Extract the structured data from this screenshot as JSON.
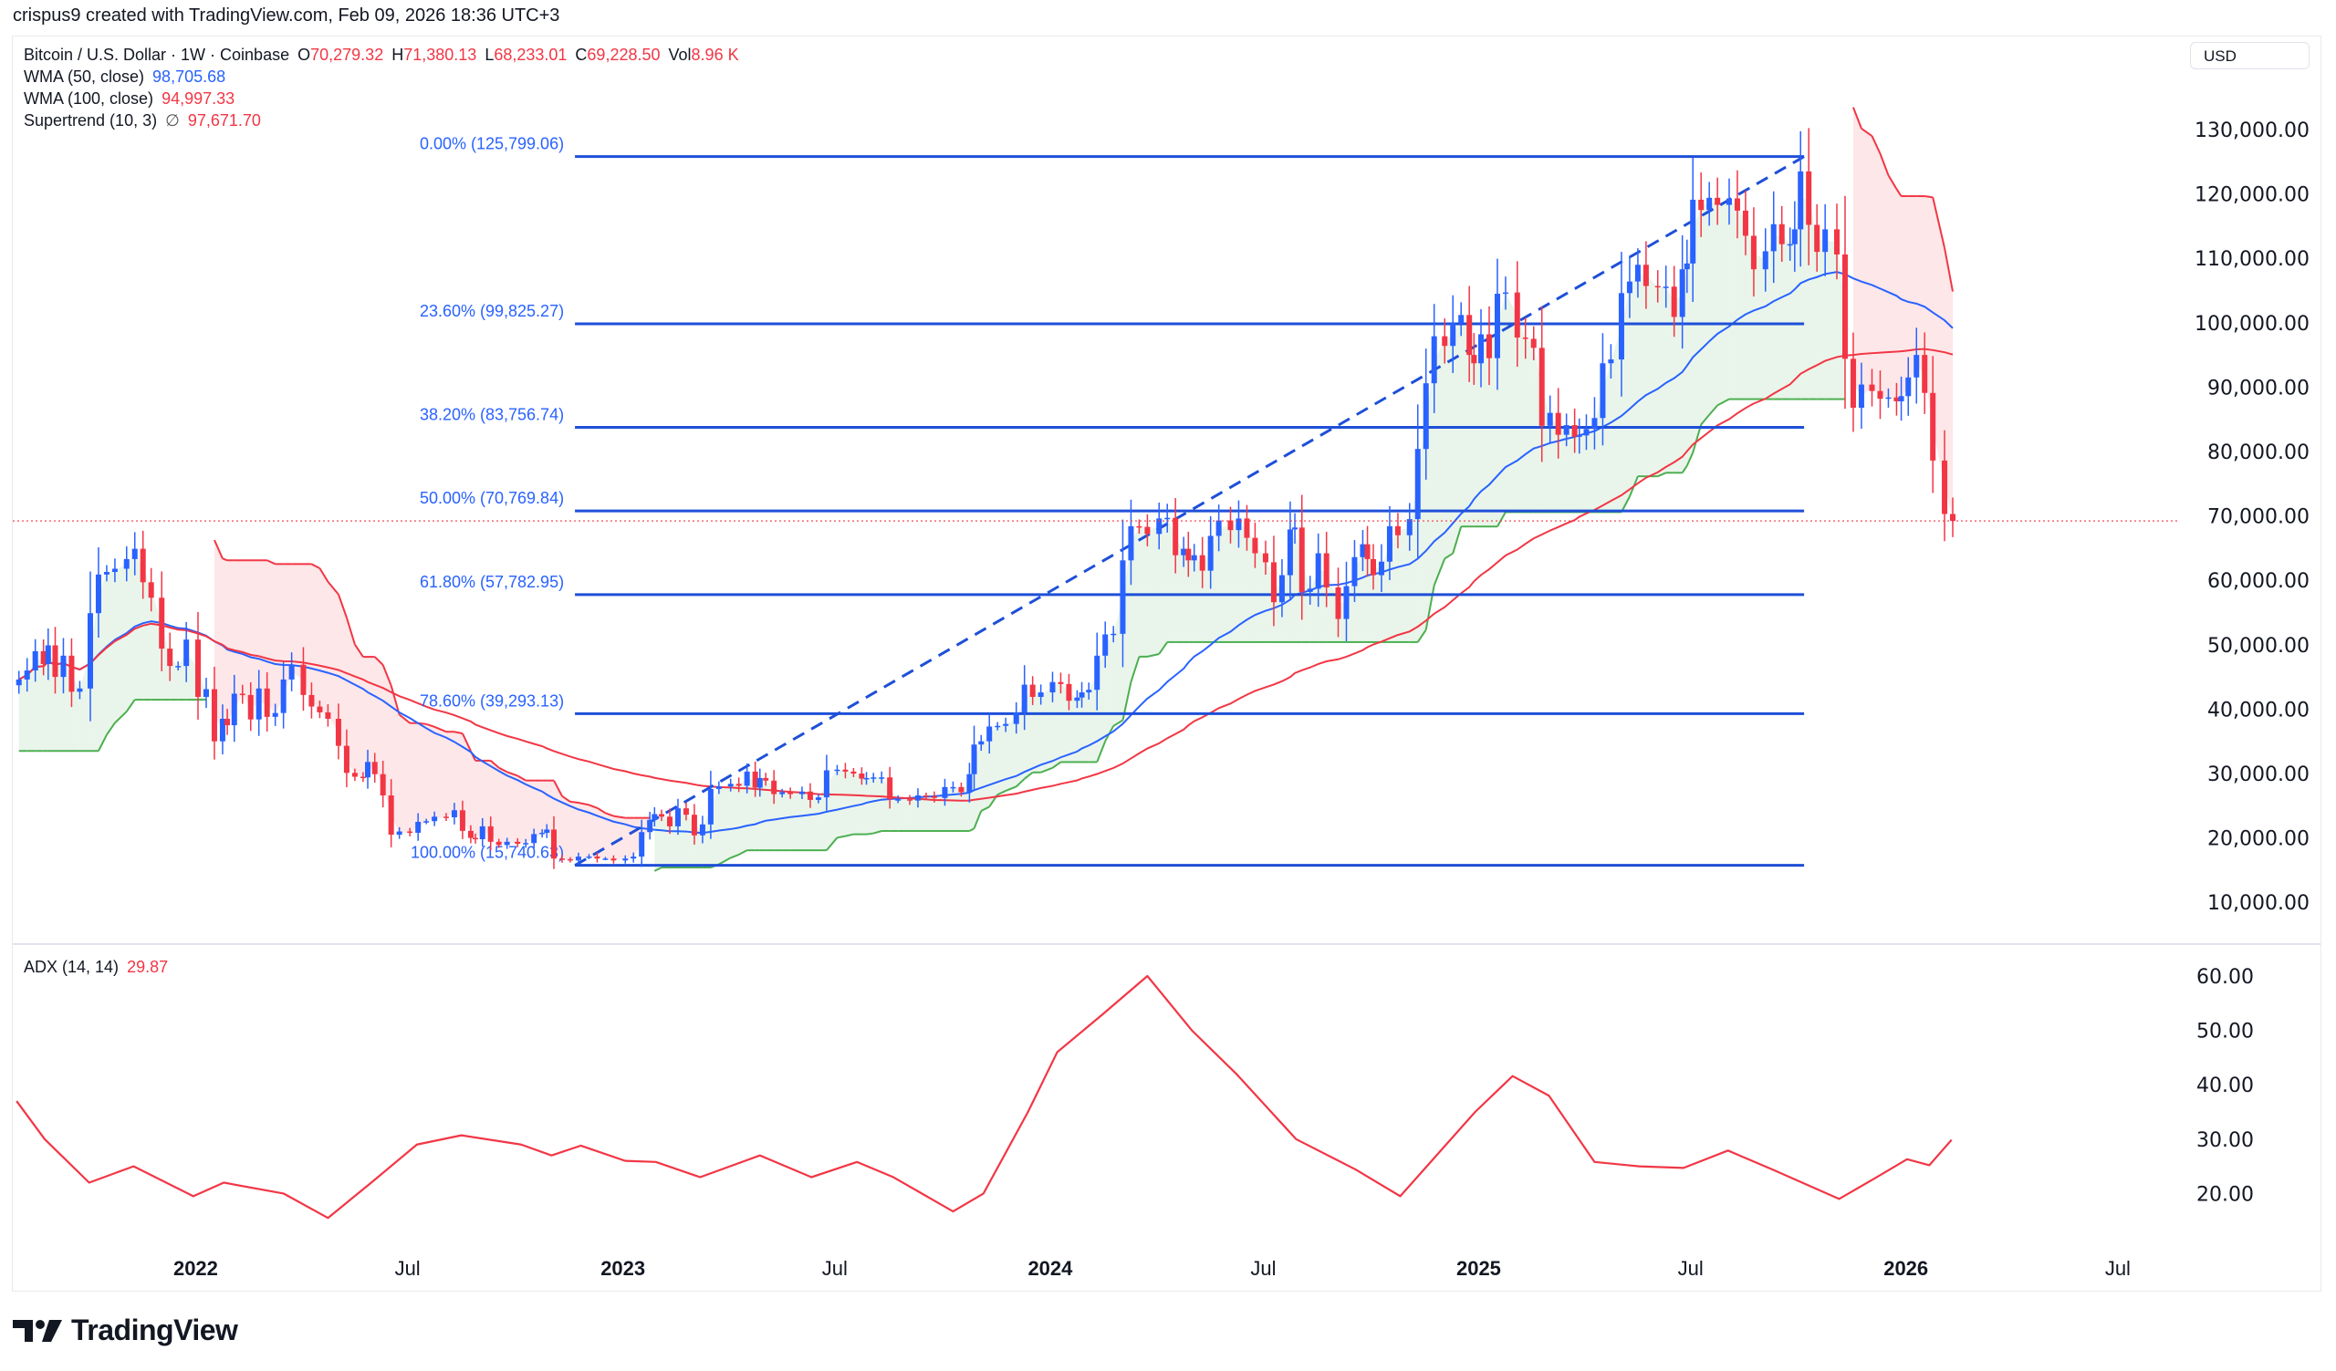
{
  "credit": "crispus9 created with TradingView.com, Feb 09, 2026 18:36 UTC+3",
  "symbol": {
    "name": "Bitcoin / U.S. Dollar · 1W · Coinbase",
    "o_label": "O",
    "o": "70,279.32",
    "h_label": "H",
    "h": "71,380.13",
    "l_label": "L",
    "l": "68,233.01",
    "c_label": "C",
    "c": "69,228.50",
    "vol_label": "Vol",
    "vol": "8.96 K"
  },
  "indicators": {
    "wma50": {
      "label": "WMA (50, close)",
      "value": "98,705.68",
      "color": "#2962ff"
    },
    "wma100": {
      "label": "WMA (100, close)",
      "value": "94,997.33",
      "color": "#f23645"
    },
    "supertrend": {
      "label": "Supertrend (10, 3)",
      "icon": "∅",
      "value": "97,671.70",
      "up_color": "#4caf50",
      "down_color": "#f23645"
    },
    "adx": {
      "label": "ADX (14, 14)",
      "value": "29.87",
      "color": "#f23645"
    }
  },
  "currency": "USD",
  "logo": {
    "text": "TradingView"
  },
  "colors": {
    "up": "#2962ff",
    "down": "#f23645",
    "fib": "#1e4fd8",
    "grid_border": "#e0e3eb"
  },
  "chart_data": [
    {
      "type": "candlestick",
      "timeframe": "1W",
      "ylim": [
        10000,
        130000
      ],
      "yticks": [
        "130,000.00",
        "120,000.00",
        "110,000.00",
        "100,000.00",
        "90,000.00",
        "80,000.00",
        "70,000.00",
        "60,000.00",
        "50,000.00",
        "40,000.00",
        "30,000.00",
        "20,000.00",
        "10,000.00"
      ],
      "ytick_values": [
        130000,
        120000,
        110000,
        100000,
        90000,
        80000,
        70000,
        60000,
        50000,
        40000,
        30000,
        20000,
        10000
      ],
      "xticks": [
        {
          "date": "2022-01-01",
          "label": "2022",
          "bold": true
        },
        {
          "date": "2022-07-01",
          "label": "Jul",
          "bold": false
        },
        {
          "date": "2023-01-01",
          "label": "2023",
          "bold": true
        },
        {
          "date": "2023-07-01",
          "label": "Jul",
          "bold": false
        },
        {
          "date": "2024-01-01",
          "label": "2024",
          "bold": true
        },
        {
          "date": "2024-07-01",
          "label": "Jul",
          "bold": false
        },
        {
          "date": "2025-01-01",
          "label": "2025",
          "bold": true
        },
        {
          "date": "2025-07-01",
          "label": "Jul",
          "bold": false
        },
        {
          "date": "2026-01-01",
          "label": "2026",
          "bold": true
        },
        {
          "date": "2026-07-01",
          "label": "Jul",
          "bold": false
        }
      ],
      "last_price": 69228.5,
      "weekly_close_by_month": {
        "2021-08": [
          44600,
          46000,
          49000,
          47000,
          49900
        ],
        "2021-09": [
          45000,
          48300,
          42700,
          43200
        ],
        "2021-10": [
          54900,
          60900,
          61300,
          61800
        ],
        "2021-11": [
          63300,
          64900,
          59700,
          57300
        ],
        "2021-12": [
          49400,
          46700,
          46700,
          50800
        ],
        "2022-01": [
          41900,
          43100,
          35000,
          38500,
          37500
        ],
        "2022-02": [
          42400,
          42200,
          38400,
          43200
        ],
        "2022-03": [
          38800,
          39400,
          44600,
          46900
        ],
        "2022-04": [
          42200,
          40400,
          39500,
          38500
        ],
        "2022-05": [
          34300,
          30100,
          29500,
          29400,
          31800
        ],
        "2022-06": [
          29900,
          26600,
          20500,
          21000
        ],
        "2022-07": [
          20800,
          22500,
          22600,
          23300
        ],
        "2022-08": [
          23200,
          24300,
          21100,
          20000,
          19800
        ],
        "2022-09": [
          21800,
          19400,
          18900,
          19400
        ],
        "2022-10": [
          19100,
          19200,
          20600,
          20800,
          21300
        ],
        "2022-11": [
          16800,
          16700,
          16500,
          17100
        ],
        "2022-12": [
          17100,
          16800,
          16800,
          16500
        ],
        "2023-01": [
          16800,
          17100,
          20900,
          22800,
          23700
        ],
        "2023-02": [
          23300,
          21800,
          24600,
          23600
        ],
        "2023-03": [
          20400,
          22100,
          27600,
          28000
        ],
        "2023-04": [
          28400,
          28100,
          30300,
          27800,
          29300
        ],
        "2023-05": [
          28900,
          26800,
          27100,
          26800
        ],
        "2023-06": [
          27200,
          25900,
          26300,
          30500
        ],
        "2023-07": [
          30600,
          30300,
          30000,
          29200,
          29300
        ],
        "2023-08": [
          29400,
          29400,
          26000,
          26000
        ],
        "2023-09": [
          25800,
          26600,
          26500,
          26200
        ],
        "2023-10": [
          27900,
          27900,
          27100,
          29900,
          34500
        ],
        "2023-11": [
          35000,
          37300,
          37400,
          37700
        ],
        "2023-12": [
          39500,
          43800,
          41900,
          42600
        ],
        "2024-01": [
          44200,
          43900,
          41300,
          41800,
          42600
        ],
        "2024-02": [
          43000,
          48300,
          51600,
          51700
        ],
        "2024-03": [
          63100,
          68400,
          68300,
          67200
        ],
        "2024-04": [
          69600,
          69700,
          63900,
          64900,
          63100
        ],
        "2024-05": [
          63900,
          61500,
          66900,
          69300
        ],
        "2024-06": [
          67800,
          69600,
          66600,
          64200
        ],
        "2024-07": [
          62800,
          56600,
          60800,
          67900,
          68200
        ],
        "2024-08": [
          58200,
          58700,
          64200,
          58900
        ],
        "2024-09": [
          54000,
          59100,
          63600,
          65600,
          63300
        ],
        "2024-10": [
          60800,
          62900,
          68400,
          67000
        ],
        "2024-11": [
          69500,
          80400,
          90600,
          97900
        ],
        "2024-12": [
          96400,
          99900,
          101200,
          95000,
          93700
        ],
        "2025-01": [
          98200,
          94500,
          104500,
          104700
        ],
        "2025-02": [
          97700,
          97500,
          96100,
          84000
        ],
        "2025-03": [
          86000,
          82600,
          84100,
          82300,
          82500
        ],
        "2025-04": [
          83500,
          85200,
          93700,
          94300
        ],
        "2025-05": [
          104600,
          106400,
          109000,
          105700
        ],
        "2025-06": [
          105600,
          105600,
          100900,
          108300,
          109200
        ],
        "2025-07": [
          119100,
          117500,
          119400,
          118300
        ],
        "2025-08": [
          119300,
          117400,
          113500,
          108300
        ],
        "2025-09": [
          111100,
          115300,
          112200,
          112200,
          114500
        ],
        "2025-10": [
          123500,
          115200,
          111000,
          114500
        ],
        "2025-11": [
          110600,
          94400,
          86800,
          90400
        ],
        "2025-12": [
          89400,
          88200,
          88400,
          87800,
          88600
        ],
        "2026-01": [
          91500,
          95000,
          89100,
          78600
        ],
        "2026-02": [
          70300,
          69228.5
        ]
      },
      "fibonacci": [
        {
          "label": "0.00% (125,799.06)",
          "price": 125799.06
        },
        {
          "label": "23.60% (99,825.27)",
          "price": 99825.27
        },
        {
          "label": "38.20% (83,756.74)",
          "price": 83756.74
        },
        {
          "label": "50.00% (70,769.84)",
          "price": 70769.84
        },
        {
          "label": "61.80% (57,782.95)",
          "price": 57782.95
        },
        {
          "label": "78.60% (39,293.13)",
          "price": 39293.13
        },
        {
          "label": "100.00% (15,740.63)",
          "price": 15740.63
        }
      ],
      "fibonacci_range": {
        "start_date": "2022-11-21",
        "end_date": "2025-10-06",
        "low": 15740.63,
        "high": 125799.06
      }
    },
    {
      "type": "line",
      "name": "ADX (14, 14)",
      "ylim": [
        10,
        65
      ],
      "yticks": [
        "60.00",
        "50.00",
        "40.00",
        "30.00",
        "20.00"
      ],
      "ytick_values": [
        60,
        50,
        40,
        30,
        20
      ],
      "points": [
        [
          "2021-08-01",
          37
        ],
        [
          "2021-08-25",
          30
        ],
        [
          "2021-10-02",
          22
        ],
        [
          "2021-11-09",
          25
        ],
        [
          "2021-12-30",
          19.5
        ],
        [
          "2022-01-25",
          22
        ],
        [
          "2022-03-17",
          20
        ],
        [
          "2022-04-24",
          15.5
        ],
        [
          "2022-05-31",
          22
        ],
        [
          "2022-07-09",
          29
        ],
        [
          "2022-08-16",
          30.7
        ],
        [
          "2022-10-06",
          29
        ],
        [
          "2022-11-01",
          27
        ],
        [
          "2022-11-26",
          28.8
        ],
        [
          "2023-01-03",
          26
        ],
        [
          "2023-01-29",
          25.8
        ],
        [
          "2023-03-08",
          23
        ],
        [
          "2023-04-28",
          27
        ],
        [
          "2023-06-11",
          23
        ],
        [
          "2023-07-20",
          25.8
        ],
        [
          "2023-08-20",
          23
        ],
        [
          "2023-10-10",
          16.7
        ],
        [
          "2023-11-05",
          20
        ],
        [
          "2023-12-13",
          35
        ],
        [
          "2024-01-07",
          46
        ],
        [
          "2024-02-15",
          53
        ],
        [
          "2024-03-24",
          60
        ],
        [
          "2024-05-01",
          50
        ],
        [
          "2024-06-08",
          42
        ],
        [
          "2024-07-29",
          30
        ],
        [
          "2024-09-18",
          24.4
        ],
        [
          "2024-10-26",
          19.5
        ],
        [
          "2024-11-21",
          25.8
        ],
        [
          "2024-12-29",
          35
        ],
        [
          "2025-01-30",
          41.6
        ],
        [
          "2025-03-02",
          38
        ],
        [
          "2025-04-10",
          25.8
        ],
        [
          "2025-05-18",
          25
        ],
        [
          "2025-06-25",
          24.7
        ],
        [
          "2025-08-02",
          27.9
        ],
        [
          "2025-09-09",
          24.4
        ],
        [
          "2025-11-05",
          19
        ],
        [
          "2025-12-07",
          23
        ],
        [
          "2026-01-02",
          26.3
        ],
        [
          "2026-01-21",
          25.2
        ],
        [
          "2026-02-09",
          29.87
        ]
      ]
    }
  ]
}
